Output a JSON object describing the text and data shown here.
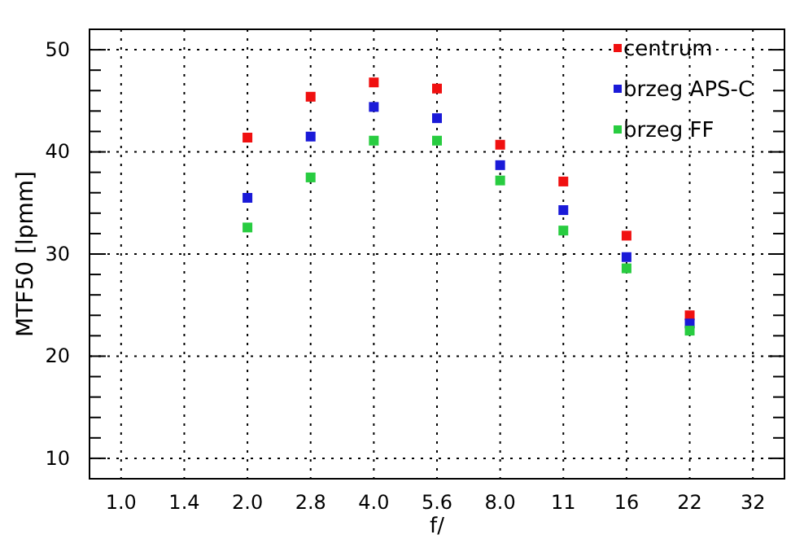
{
  "chart_data": {
    "type": "scatter",
    "xlabel": "f/",
    "ylabel": "MTF50 [lpmm]",
    "categories": [
      "1.0",
      "1.4",
      "2.0",
      "2.8",
      "4.0",
      "5.6",
      "8.0",
      "11",
      "16",
      "22",
      "32"
    ],
    "series": [
      {
        "name": "centrum",
        "color": "#f01010",
        "values": [
          null,
          null,
          41.4,
          45.4,
          46.8,
          46.2,
          40.7,
          37.1,
          31.8,
          24.0,
          null
        ]
      },
      {
        "name": "brzeg APS-C",
        "color": "#1a1ad8",
        "values": [
          null,
          null,
          35.5,
          41.5,
          44.4,
          43.3,
          38.7,
          34.3,
          29.7,
          23.2,
          null
        ]
      },
      {
        "name": "brzeg FF",
        "color": "#28cc40",
        "values": [
          null,
          null,
          32.6,
          37.5,
          41.1,
          41.1,
          37.2,
          32.3,
          28.6,
          22.5,
          null
        ]
      }
    ],
    "ylim": [
      8,
      52
    ],
    "yticks": [
      10,
      {
        "value": 12,
        "label": null
      },
      {
        "value": 14,
        "label": null
      },
      {
        "value": 16,
        "label": null
      },
      {
        "value": 18,
        "label": null
      },
      20,
      {
        "value": 22,
        "label": null
      },
      {
        "value": 24,
        "label": null
      },
      {
        "value": 26,
        "label": null
      },
      {
        "value": 28,
        "label": null
      },
      30,
      {
        "value": 32,
        "label": null
      },
      {
        "value": 34,
        "label": null
      },
      {
        "value": 36,
        "label": null
      },
      {
        "value": 38,
        "label": null
      },
      40,
      {
        "value": 42,
        "label": null
      },
      {
        "value": 44,
        "label": null
      },
      {
        "value": 46,
        "label": null
      },
      {
        "value": 48,
        "label": null
      },
      50
    ],
    "grid": true,
    "legend": "top right",
    "marker": "square"
  }
}
